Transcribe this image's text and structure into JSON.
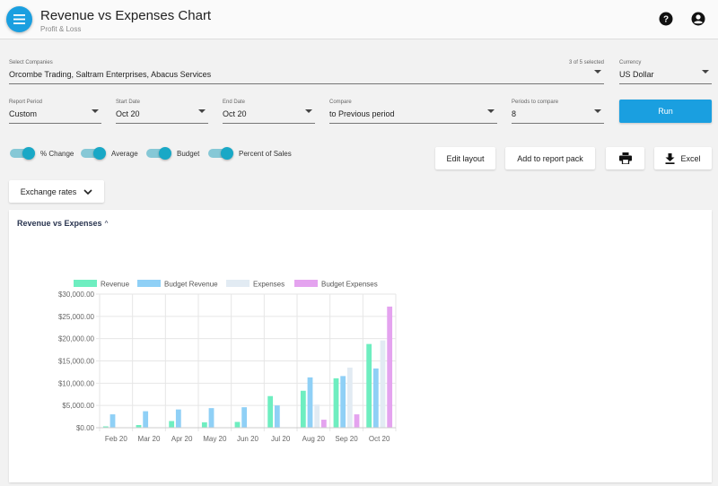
{
  "header": {
    "title": "Revenue vs Expenses Chart",
    "subtitle": "Profit & Loss",
    "menu_icon": "menu-icon",
    "help_icon": "help-icon",
    "account_icon": "account-circle-icon"
  },
  "filters": {
    "companies": {
      "label": "Select Companies",
      "value": "Orcombe Trading, Saltram Enterprises, Abacus Services",
      "selected_count": "3 of 5 selected"
    },
    "currency": {
      "label": "Currency",
      "value": "US Dollar"
    },
    "report_period": {
      "label": "Report Period",
      "value": "Custom"
    },
    "start_date": {
      "label": "Start Date",
      "value": "Oct 20"
    },
    "end_date": {
      "label": "End Date",
      "value": "Oct 20"
    },
    "compare": {
      "label": "Compare",
      "value": "to Previous period"
    },
    "periods": {
      "label": "Periods to compare",
      "value": "8"
    },
    "run_label": "Run"
  },
  "toggles": [
    {
      "label": "% Change",
      "on": true
    },
    {
      "label": "Average",
      "on": true
    },
    {
      "label": "Budget",
      "on": true
    },
    {
      "label": "Percent of Sales",
      "on": true
    }
  ],
  "actions": {
    "edit_layout": "Edit layout",
    "add_to_pack": "Add to report pack",
    "print_icon": "print-icon",
    "excel": "Excel",
    "excel_icon": "download-icon",
    "exchange_rates": "Exchange rates"
  },
  "panel": {
    "title": "Revenue vs Expenses",
    "chevron": "^"
  },
  "colors": {
    "primary": "#1a9fe0",
    "toggle": "#19a8c6"
  },
  "chart_data": {
    "type": "bar",
    "categories": [
      "Feb 20",
      "Mar 20",
      "Apr 20",
      "May 20",
      "Jun 20",
      "Jul 20",
      "Aug 20",
      "Sep 20",
      "Oct 20"
    ],
    "series": [
      {
        "name": "Revenue",
        "color": "#6eeec0",
        "values": [
          300,
          600,
          1500,
          1200,
          1300,
          7100,
          8300,
          11100,
          18800
        ]
      },
      {
        "name": "Budget Revenue",
        "color": "#8fd0f6",
        "values": [
          3000,
          3700,
          4100,
          4400,
          4600,
          5000,
          11300,
          11600,
          13300
        ]
      },
      {
        "name": "Expenses",
        "color": "#e2ebf3",
        "values": [
          0,
          0,
          0,
          0,
          0,
          0,
          5200,
          13500,
          19600
        ]
      },
      {
        "name": "Budget Expenses",
        "color": "#e4a3ef",
        "values": [
          0,
          0,
          0,
          0,
          0,
          0,
          1800,
          3000,
          27200
        ]
      }
    ],
    "ylim": [
      0,
      30000
    ],
    "yticks": [
      "$0.00",
      "$5,000.00",
      "$10,000.00",
      "$15,000.00",
      "$20,000.00",
      "$25,000.00",
      "$30,000.00"
    ],
    "grid": true,
    "legend": "top"
  }
}
